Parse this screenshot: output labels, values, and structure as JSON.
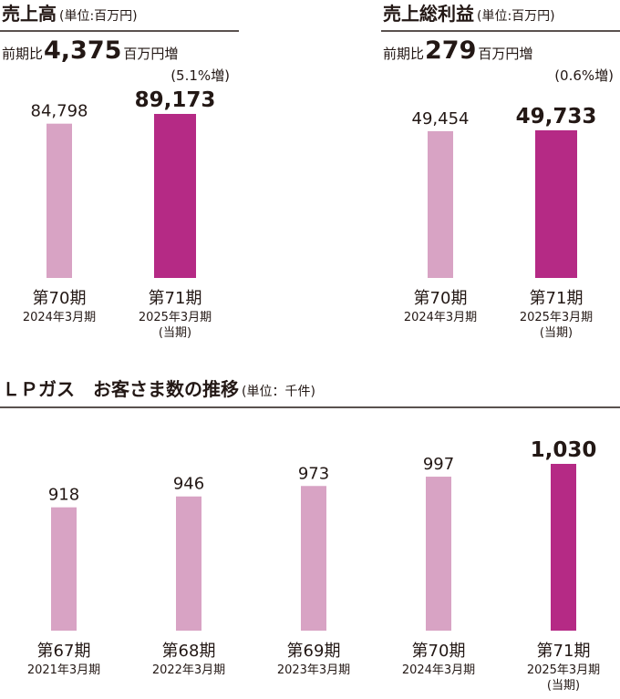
{
  "colors": {
    "past": "#d8a3c4",
    "current": "#b52a85",
    "text": "#231815",
    "rule": "#231815"
  },
  "chart_data": [
    {
      "type": "bar",
      "title": "売上高",
      "unit": "(単位:百万円)",
      "summary": {
        "prefix": "前期比",
        "value": "4,375",
        "suffix": "百万円増",
        "pct": "(5.1%増)"
      },
      "categories": [
        {
          "name": "第70期",
          "sub": "2024年3月期",
          "note": ""
        },
        {
          "name": "第71期",
          "sub": "2025年3月期",
          "note": "(当期)"
        }
      ],
      "values": [
        84798,
        89173
      ],
      "value_labels": [
        "84,798",
        "89,173"
      ],
      "highlight": [
        false,
        true
      ]
    },
    {
      "type": "bar",
      "title": "売上総利益",
      "unit": "(単位:百万円)",
      "summary": {
        "prefix": "前期比",
        "value": "279",
        "suffix": "百万円増",
        "pct": "(0.6%増)"
      },
      "categories": [
        {
          "name": "第70期",
          "sub": "2024年3月期",
          "note": ""
        },
        {
          "name": "第71期",
          "sub": "2025年3月期",
          "note": "(当期)"
        }
      ],
      "values": [
        49454,
        49733
      ],
      "value_labels": [
        "49,454",
        "49,733"
      ],
      "highlight": [
        false,
        true
      ]
    },
    {
      "type": "bar",
      "title": "ＬＰガス　お客さま数の推移",
      "unit": "(単位：千件)",
      "categories": [
        {
          "name": "第67期",
          "sub": "2021年3月期",
          "note": ""
        },
        {
          "name": "第68期",
          "sub": "2022年3月期",
          "note": ""
        },
        {
          "name": "第69期",
          "sub": "2023年3月期",
          "note": ""
        },
        {
          "name": "第70期",
          "sub": "2024年3月期",
          "note": ""
        },
        {
          "name": "第71期",
          "sub": "2025年3月期",
          "note": "(当期)"
        }
      ],
      "values": [
        918,
        946,
        973,
        997,
        1030
      ],
      "value_labels": [
        "918",
        "946",
        "973",
        "997",
        "1,030"
      ],
      "highlight": [
        false,
        false,
        false,
        false,
        true
      ]
    }
  ]
}
